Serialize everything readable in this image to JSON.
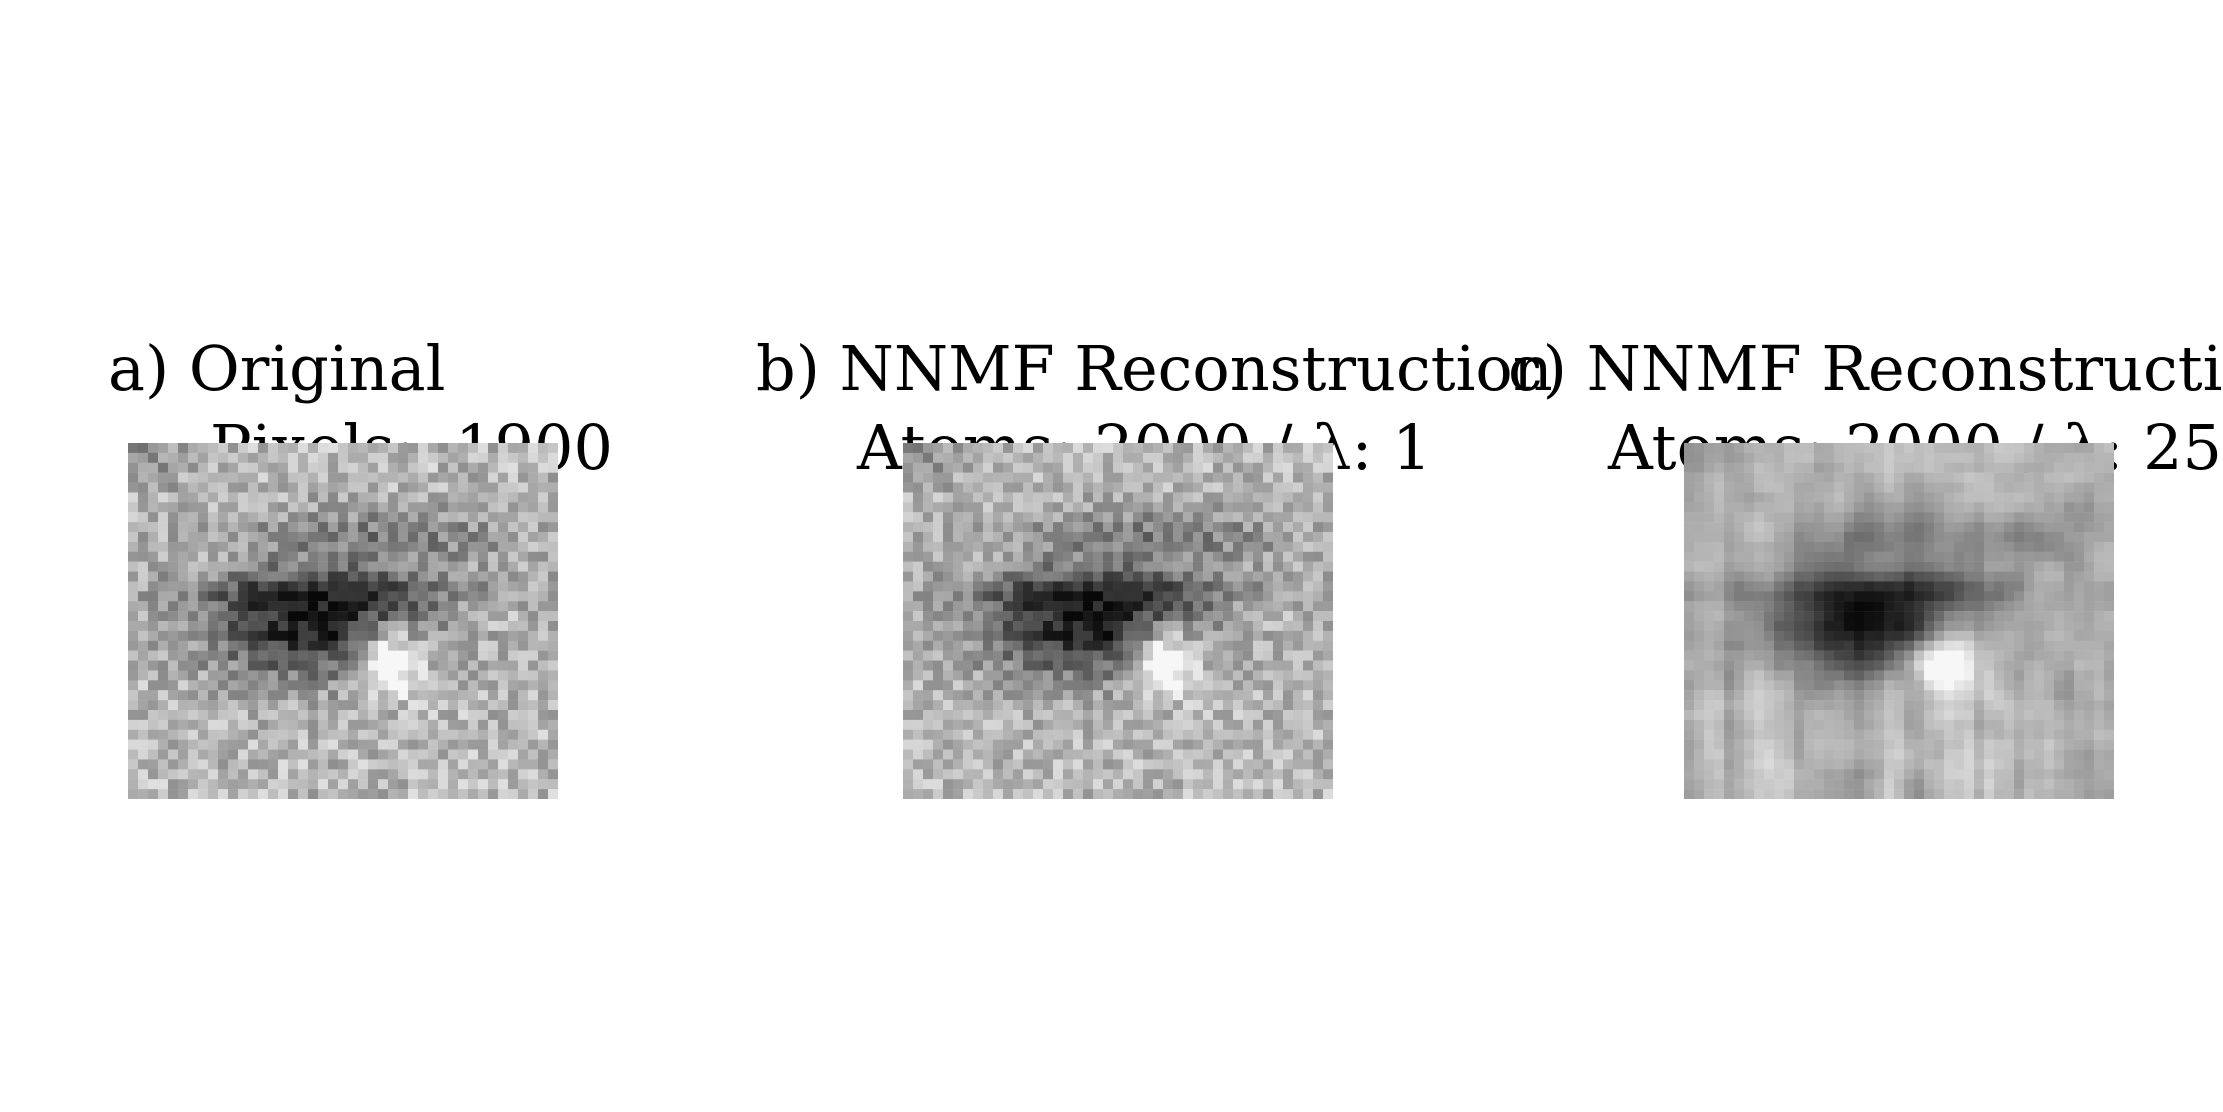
{
  "figure": {
    "panels": [
      {
        "id": "a",
        "title": "a) Original",
        "subtitle": "Pixels:  1900",
        "image": "grayscale-eye-patch-original"
      },
      {
        "id": "b",
        "title": "b) NNMF Reconstruction",
        "subtitle": "Atoms: 2000 / λ: 1",
        "image": "grayscale-eye-patch-reconstruction"
      },
      {
        "id": "c",
        "title": "c) NNMF Reconstruction",
        "subtitle": "Atoms: 2000 / λ: 25",
        "image": "grayscale-eye-patch-reconstruction-smoothed"
      }
    ]
  }
}
